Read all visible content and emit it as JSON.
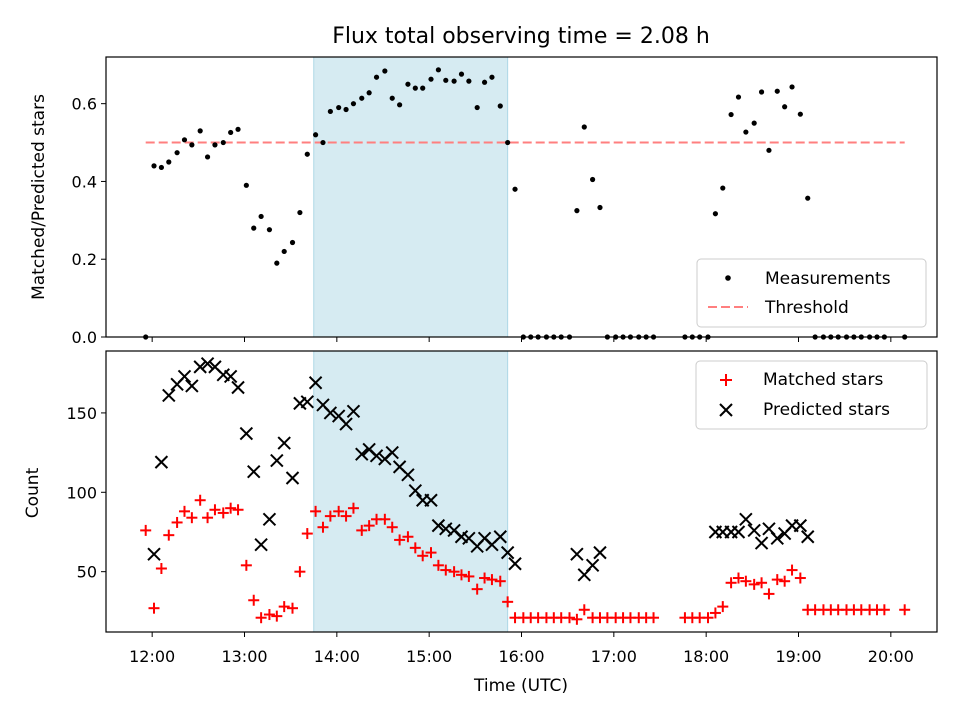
{
  "chart_data": [
    {
      "type": "scatter",
      "title": "Flux total observing time = 2.08 h",
      "ylabel": "Matched/Predicted stars",
      "xlabel": "",
      "x_unit": "hours UTC",
      "xlim": [
        11.5,
        20.5
      ],
      "ylim": [
        0,
        0.72
      ],
      "yticks": [
        0.0,
        0.2,
        0.4,
        0.6
      ],
      "ytick_labels": [
        "0.0",
        "0.2",
        "0.4",
        "0.6"
      ],
      "xtick_labels": [],
      "highlight_span": [
        13.75,
        15.85
      ],
      "highlight_color": "#add8e6",
      "legend_position": "lower right",
      "series": [
        {
          "name": "Measurements",
          "marker": "dot",
          "color": "#000000",
          "points": [
            [
              11.93,
              0.0
            ],
            [
              12.02,
              0.44
            ],
            [
              12.1,
              0.436
            ],
            [
              12.18,
              0.45
            ],
            [
              12.27,
              0.474
            ],
            [
              12.35,
              0.507
            ],
            [
              12.43,
              0.494
            ],
            [
              12.52,
              0.53
            ],
            [
              12.6,
              0.463
            ],
            [
              12.68,
              0.494
            ],
            [
              12.77,
              0.5
            ],
            [
              12.85,
              0.526
            ],
            [
              12.93,
              0.534
            ],
            [
              13.02,
              0.39
            ],
            [
              13.1,
              0.28
            ],
            [
              13.18,
              0.31
            ],
            [
              13.27,
              0.276
            ],
            [
              13.35,
              0.19
            ],
            [
              13.43,
              0.22
            ],
            [
              13.52,
              0.243
            ],
            [
              13.6,
              0.32
            ],
            [
              13.68,
              0.47
            ],
            [
              13.77,
              0.52
            ],
            [
              13.85,
              0.5
            ],
            [
              13.93,
              0.58
            ],
            [
              14.02,
              0.59
            ],
            [
              14.1,
              0.585
            ],
            [
              14.18,
              0.6
            ],
            [
              14.27,
              0.614
            ],
            [
              14.35,
              0.628
            ],
            [
              14.43,
              0.668
            ],
            [
              14.52,
              0.684
            ],
            [
              14.6,
              0.614
            ],
            [
              14.68,
              0.597
            ],
            [
              14.77,
              0.65
            ],
            [
              14.85,
              0.64
            ],
            [
              14.93,
              0.64
            ],
            [
              15.02,
              0.663
            ],
            [
              15.1,
              0.687
            ],
            [
              15.18,
              0.66
            ],
            [
              15.27,
              0.658
            ],
            [
              15.35,
              0.676
            ],
            [
              15.43,
              0.658
            ],
            [
              15.52,
              0.59
            ],
            [
              15.6,
              0.655
            ],
            [
              15.68,
              0.668
            ],
            [
              15.77,
              0.594
            ],
            [
              15.85,
              0.5
            ],
            [
              15.93,
              0.38
            ],
            [
              16.02,
              0.0
            ],
            [
              16.1,
              0.0
            ],
            [
              16.18,
              0.0
            ],
            [
              16.27,
              0.0
            ],
            [
              16.35,
              0.0
            ],
            [
              16.43,
              0.0
            ],
            [
              16.52,
              0.0
            ],
            [
              16.6,
              0.325
            ],
            [
              16.68,
              0.54
            ],
            [
              16.77,
              0.405
            ],
            [
              16.85,
              0.333
            ],
            [
              16.93,
              0.0
            ],
            [
              17.02,
              0.0
            ],
            [
              17.1,
              0.0
            ],
            [
              17.18,
              0.0
            ],
            [
              17.27,
              0.0
            ],
            [
              17.35,
              0.0
            ],
            [
              17.43,
              0.0
            ],
            [
              17.77,
              0.0
            ],
            [
              17.85,
              0.0
            ],
            [
              17.93,
              0.0
            ],
            [
              18.02,
              0.0
            ],
            [
              18.1,
              0.317
            ],
            [
              18.18,
              0.383
            ],
            [
              18.27,
              0.572
            ],
            [
              18.35,
              0.617
            ],
            [
              18.43,
              0.527
            ],
            [
              18.52,
              0.55
            ],
            [
              18.6,
              0.63
            ],
            [
              18.68,
              0.48
            ],
            [
              18.77,
              0.632
            ],
            [
              18.85,
              0.592
            ],
            [
              18.93,
              0.643
            ],
            [
              19.02,
              0.573
            ],
            [
              19.1,
              0.357
            ],
            [
              19.18,
              0.0
            ],
            [
              19.27,
              0.0
            ],
            [
              19.35,
              0.0
            ],
            [
              19.43,
              0.0
            ],
            [
              19.52,
              0.0
            ],
            [
              19.6,
              0.0
            ],
            [
              19.68,
              0.0
            ],
            [
              19.77,
              0.0
            ],
            [
              19.85,
              0.0
            ],
            [
              19.93,
              0.0
            ],
            [
              20.15,
              0.0
            ]
          ]
        },
        {
          "name": "Threshold",
          "marker": "dashed-line",
          "color": "#ff7f7f",
          "x": [
            11.93,
            20.15
          ],
          "y": [
            0.5,
            0.5
          ]
        }
      ]
    },
    {
      "type": "scatter",
      "title": "",
      "ylabel": "Count",
      "xlabel": "Time (UTC)",
      "x_unit": "hours UTC",
      "xlim": [
        11.5,
        20.5
      ],
      "ylim": [
        12,
        189
      ],
      "yticks": [
        50,
        100,
        150
      ],
      "ytick_labels": [
        "50",
        "100",
        "150"
      ],
      "xticks": [
        12,
        13,
        14,
        15,
        16,
        17,
        18,
        19,
        20
      ],
      "xtick_labels": [
        "12:00",
        "13:00",
        "14:00",
        "15:00",
        "16:00",
        "17:00",
        "18:00",
        "19:00",
        "20:00"
      ],
      "highlight_span": [
        13.75,
        15.85
      ],
      "highlight_color": "#add8e6",
      "legend_position": "upper right",
      "series": [
        {
          "name": "Matched stars",
          "marker": "plus",
          "color": "#ff0000",
          "points": [
            [
              11.93,
              76
            ],
            [
              12.02,
              27
            ],
            [
              12.1,
              52
            ],
            [
              12.18,
              73
            ],
            [
              12.27,
              81
            ],
            [
              12.35,
              88
            ],
            [
              12.43,
              84
            ],
            [
              12.52,
              95
            ],
            [
              12.6,
              84
            ],
            [
              12.68,
              89
            ],
            [
              12.77,
              87
            ],
            [
              12.85,
              90
            ],
            [
              12.93,
              89
            ],
            [
              13.02,
              54
            ],
            [
              13.1,
              32
            ],
            [
              13.18,
              21
            ],
            [
              13.27,
              23
            ],
            [
              13.35,
              22
            ],
            [
              13.43,
              28
            ],
            [
              13.52,
              27
            ],
            [
              13.6,
              50
            ],
            [
              13.68,
              74
            ],
            [
              13.77,
              88
            ],
            [
              13.85,
              78
            ],
            [
              13.93,
              85
            ],
            [
              14.02,
              88
            ],
            [
              14.1,
              85
            ],
            [
              14.18,
              90
            ],
            [
              14.27,
              76
            ],
            [
              14.35,
              79
            ],
            [
              14.43,
              83
            ],
            [
              14.52,
              83
            ],
            [
              14.6,
              78
            ],
            [
              14.68,
              70
            ],
            [
              14.77,
              72
            ],
            [
              14.85,
              65
            ],
            [
              14.93,
              60
            ],
            [
              15.02,
              62
            ],
            [
              15.1,
              54
            ],
            [
              15.18,
              51
            ],
            [
              15.27,
              50
            ],
            [
              15.35,
              48
            ],
            [
              15.43,
              47
            ],
            [
              15.52,
              39
            ],
            [
              15.6,
              46
            ],
            [
              15.68,
              45
            ],
            [
              15.77,
              44
            ],
            [
              15.85,
              31
            ],
            [
              15.93,
              21
            ],
            [
              16.02,
              21
            ],
            [
              16.1,
              21
            ],
            [
              16.18,
              21
            ],
            [
              16.27,
              21
            ],
            [
              16.35,
              21
            ],
            [
              16.43,
              21
            ],
            [
              16.52,
              21
            ],
            [
              16.6,
              20
            ],
            [
              16.68,
              26
            ],
            [
              16.77,
              21
            ],
            [
              16.85,
              21
            ],
            [
              16.93,
              21
            ],
            [
              17.02,
              21
            ],
            [
              17.1,
              21
            ],
            [
              17.18,
              21
            ],
            [
              17.27,
              21
            ],
            [
              17.35,
              21
            ],
            [
              17.43,
              21
            ],
            [
              17.77,
              21
            ],
            [
              17.85,
              21
            ],
            [
              17.93,
              21
            ],
            [
              18.02,
              21
            ],
            [
              18.1,
              24
            ],
            [
              18.18,
              28
            ],
            [
              18.27,
              43
            ],
            [
              18.35,
              46
            ],
            [
              18.43,
              44
            ],
            [
              18.52,
              42
            ],
            [
              18.6,
              43
            ],
            [
              18.68,
              36
            ],
            [
              18.77,
              45
            ],
            [
              18.85,
              44
            ],
            [
              18.93,
              51
            ],
            [
              19.02,
              46
            ],
            [
              19.1,
              26
            ],
            [
              19.18,
              26
            ],
            [
              19.27,
              26
            ],
            [
              19.35,
              26
            ],
            [
              19.43,
              26
            ],
            [
              19.52,
              26
            ],
            [
              19.6,
              26
            ],
            [
              19.68,
              26
            ],
            [
              19.77,
              26
            ],
            [
              19.85,
              26
            ],
            [
              19.93,
              26
            ],
            [
              20.15,
              26
            ]
          ]
        },
        {
          "name": "Predicted stars",
          "marker": "x",
          "color": "#000000",
          "points": [
            [
              12.02,
              61
            ],
            [
              12.1,
              119
            ],
            [
              12.18,
              161
            ],
            [
              12.27,
              168
            ],
            [
              12.35,
              173
            ],
            [
              12.43,
              167
            ],
            [
              12.52,
              179
            ],
            [
              12.6,
              181
            ],
            [
              12.68,
              179
            ],
            [
              12.77,
              174
            ],
            [
              12.85,
              173
            ],
            [
              12.93,
              166
            ],
            [
              13.02,
              137
            ],
            [
              13.1,
              113
            ],
            [
              13.18,
              67
            ],
            [
              13.27,
              83
            ],
            [
              13.35,
              120
            ],
            [
              13.43,
              131
            ],
            [
              13.52,
              109
            ],
            [
              13.6,
              156
            ],
            [
              13.68,
              157
            ],
            [
              13.77,
              169
            ],
            [
              13.85,
              155
            ],
            [
              13.93,
              150
            ],
            [
              14.02,
              148
            ],
            [
              14.1,
              143
            ],
            [
              14.18,
              151
            ],
            [
              14.27,
              124
            ],
            [
              14.35,
              127
            ],
            [
              14.43,
              123
            ],
            [
              14.52,
              121
            ],
            [
              14.6,
              125
            ],
            [
              14.68,
              116
            ],
            [
              14.77,
              111
            ],
            [
              14.85,
              101
            ],
            [
              14.93,
              95
            ],
            [
              15.02,
              95
            ],
            [
              15.1,
              79
            ],
            [
              15.18,
              77
            ],
            [
              15.27,
              76
            ],
            [
              15.35,
              72
            ],
            [
              15.43,
              71
            ],
            [
              15.52,
              66
            ],
            [
              15.6,
              71
            ],
            [
              15.68,
              67
            ],
            [
              15.77,
              72
            ],
            [
              15.85,
              62
            ],
            [
              15.93,
              55
            ],
            [
              16.6,
              61
            ],
            [
              16.68,
              48
            ],
            [
              16.77,
              54
            ],
            [
              16.85,
              62
            ],
            [
              18.1,
              75
            ],
            [
              18.18,
              75
            ],
            [
              18.27,
              75
            ],
            [
              18.35,
              75
            ],
            [
              18.43,
              83
            ],
            [
              18.52,
              76
            ],
            [
              18.6,
              68
            ],
            [
              18.68,
              77
            ],
            [
              18.77,
              71
            ],
            [
              18.85,
              74
            ],
            [
              18.93,
              79
            ],
            [
              19.02,
              79
            ],
            [
              19.1,
              72
            ]
          ]
        }
      ]
    }
  ]
}
